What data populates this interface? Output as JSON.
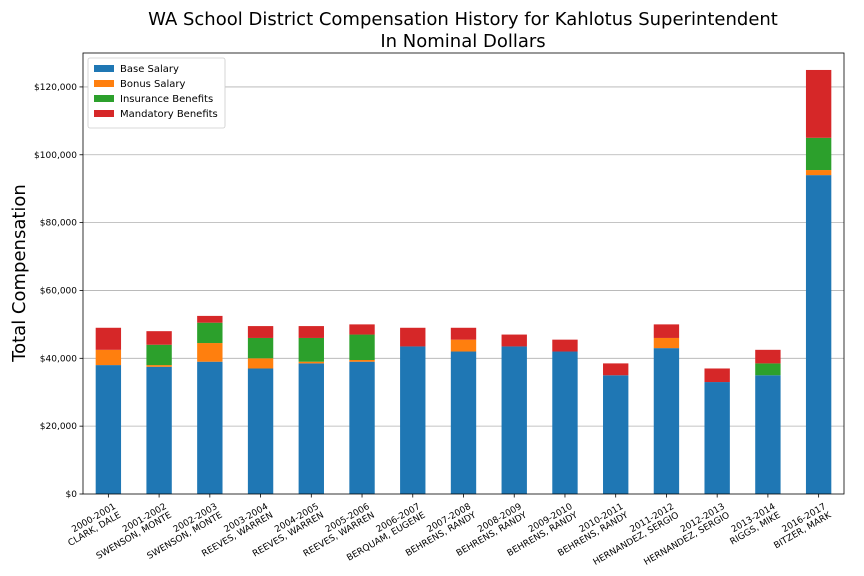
{
  "chart_data": {
    "type": "bar",
    "stacked": true,
    "title": "WA School District Compensation History for Kahlotus Superintendent",
    "subtitle": "In Nominal Dollars",
    "xlabel": "",
    "ylabel": "Total Compensation",
    "ylim": [
      0,
      130000
    ],
    "yticks": [
      0,
      20000,
      40000,
      60000,
      80000,
      100000,
      120000
    ],
    "ytick_labels": [
      "$0",
      "$20,000",
      "$40,000",
      "$60,000",
      "$80,000",
      "$100,000",
      "$120,000"
    ],
    "grid": "horizontal",
    "legend_position": "top-left",
    "categories": [
      [
        "2000-2001",
        "CLARK, DALE"
      ],
      [
        "2001-2002",
        "SWENSON, MONTE"
      ],
      [
        "2002-2003",
        "SWENSON, MONTE"
      ],
      [
        "2003-2004",
        "REEVES, WARREN"
      ],
      [
        "2004-2005",
        "REEVES, WARREN"
      ],
      [
        "2005-2006",
        "REEVES, WARREN"
      ],
      [
        "2006-2007",
        "BERQUAM, EUGENE"
      ],
      [
        "2007-2008",
        "BEHRENS, RANDY"
      ],
      [
        "2008-2009",
        "BEHRENS, RANDY"
      ],
      [
        "2009-2010",
        "BEHRENS, RANDY"
      ],
      [
        "2010-2011",
        "BEHRENS, RANDY"
      ],
      [
        "2011-2012",
        "HERNANDEZ, SERGIO"
      ],
      [
        "2012-2013",
        "HERNANDEZ, SERGIO"
      ],
      [
        "2013-2014",
        "RIGGS, MIKE"
      ],
      [
        "2016-2017",
        "BITZER, MARK"
      ]
    ],
    "series": [
      {
        "name": "Base Salary",
        "color": "#1f77b4",
        "values": [
          38000,
          37500,
          39000,
          37000,
          38500,
          39000,
          43500,
          42000,
          43500,
          42000,
          35000,
          43000,
          33000,
          35000,
          94000
        ]
      },
      {
        "name": "Bonus Salary",
        "color": "#ff7f0e",
        "values": [
          4500,
          500,
          5500,
          3000,
          500,
          500,
          0,
          3500,
          0,
          0,
          0,
          3000,
          0,
          0,
          1500
        ]
      },
      {
        "name": "Insurance Benefits",
        "color": "#2ca02c",
        "values": [
          0,
          6000,
          6000,
          6000,
          7000,
          7500,
          0,
          0,
          0,
          0,
          0,
          0,
          0,
          3500,
          9500
        ]
      },
      {
        "name": "Mandatory Benefits",
        "color": "#d62728",
        "values": [
          6500,
          4000,
          2000,
          3500,
          3500,
          3000,
          5500,
          3500,
          3500,
          3500,
          3500,
          4000,
          4000,
          4000,
          20000
        ]
      }
    ]
  }
}
